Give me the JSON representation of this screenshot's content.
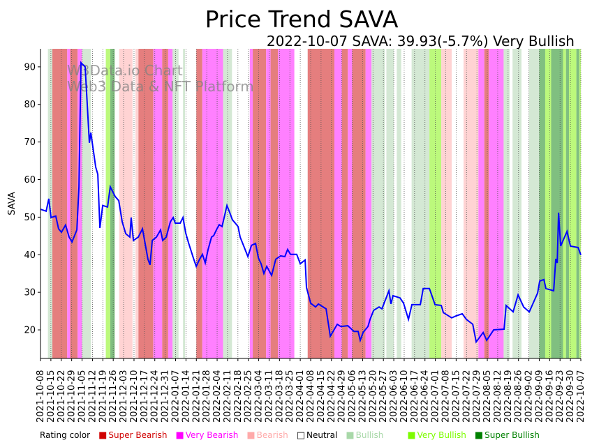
{
  "chart_data": {
    "type": "line",
    "title": "Price Trend SAVA",
    "subtitle": "2022-10-07 SAVA: 39.93(-5.7%) Very Bullish",
    "ylabel": "SAVA",
    "xlabel": "",
    "watermark": [
      "W3Data.io Chart",
      "Web3 Data & NFT Platform"
    ],
    "x_start": "2021-10-08",
    "x_range_days": [
      0,
      364
    ],
    "ylim": [
      12.4,
      94.8
    ],
    "yticks": [
      20,
      30,
      40,
      50,
      60,
      70,
      80,
      90
    ],
    "grid": "vertical dotted at x ticks",
    "xtick_days_step": 7,
    "xticks": [
      "2021-10-08",
      "2021-10-15",
      "2021-10-22",
      "2021-10-29",
      "2021-11-05",
      "2021-11-12",
      "2021-11-19",
      "2021-11-26",
      "2021-12-03",
      "2021-12-10",
      "2021-12-17",
      "2021-12-24",
      "2021-12-31",
      "2022-01-07",
      "2022-01-14",
      "2022-01-21",
      "2022-01-28",
      "2022-02-04",
      "2022-02-11",
      "2022-02-18",
      "2022-02-25",
      "2022-03-04",
      "2022-03-11",
      "2022-03-18",
      "2022-03-25",
      "2022-04-01",
      "2022-04-08",
      "2022-04-15",
      "2022-04-22",
      "2022-04-29",
      "2022-05-06",
      "2022-05-13",
      "2022-05-20",
      "2022-05-27",
      "2022-06-03",
      "2022-06-10",
      "2022-06-17",
      "2022-06-24",
      "2022-07-01",
      "2022-07-08",
      "2022-07-15",
      "2022-07-22",
      "2022-07-29",
      "2022-08-05",
      "2022-08-12",
      "2022-08-19",
      "2022-08-26",
      "2022-09-02",
      "2022-09-09",
      "2022-09-16",
      "2022-09-23",
      "2022-09-30",
      "2022-10-07"
    ],
    "series": [
      {
        "name": "SAVA",
        "color": "#0000ff",
        "points_day_price": [
          [
            0,
            52.1
          ],
          [
            3.8,
            51.6
          ],
          [
            5.6,
            54.9
          ],
          [
            7.1,
            49.9
          ],
          [
            10.3,
            50.3
          ],
          [
            12.2,
            46.9
          ],
          [
            14.1,
            46.0
          ],
          [
            16.9,
            47.9
          ],
          [
            19.3,
            44.7
          ],
          [
            21.2,
            43.4
          ],
          [
            24.5,
            46.6
          ],
          [
            25.9,
            58.1
          ],
          [
            27.3,
            91.1
          ],
          [
            30.1,
            90.0
          ],
          [
            32.9,
            69.8
          ],
          [
            33.9,
            72.5
          ],
          [
            37.2,
            63.3
          ],
          [
            38.6,
            61.4
          ],
          [
            40.0,
            47.1
          ],
          [
            41.9,
            53.1
          ],
          [
            45.2,
            52.7
          ],
          [
            47.0,
            58.1
          ],
          [
            50.3,
            55.5
          ],
          [
            52.7,
            54.4
          ],
          [
            55.0,
            48.8
          ],
          [
            57.4,
            45.6
          ],
          [
            60.2,
            44.7
          ],
          [
            61.1,
            49.9
          ],
          [
            62.6,
            43.8
          ],
          [
            65.9,
            44.7
          ],
          [
            68.7,
            46.9
          ],
          [
            72.4,
            38.8
          ],
          [
            73.8,
            37.3
          ],
          [
            75.3,
            43.8
          ],
          [
            78.1,
            44.7
          ],
          [
            80.9,
            46.6
          ],
          [
            82.3,
            43.8
          ],
          [
            84.7,
            44.7
          ],
          [
            87.5,
            48.8
          ],
          [
            89.4,
            49.9
          ],
          [
            90.8,
            48.4
          ],
          [
            94.1,
            48.4
          ],
          [
            96.0,
            49.9
          ],
          [
            97.8,
            45.8
          ],
          [
            99.7,
            43.2
          ],
          [
            103.0,
            39.1
          ],
          [
            104.9,
            36.9
          ],
          [
            107.2,
            38.8
          ],
          [
            109.1,
            40.1
          ],
          [
            111.0,
            37.8
          ],
          [
            112.9,
            41.4
          ],
          [
            115.2,
            44.7
          ],
          [
            116.7,
            45.1
          ],
          [
            118.5,
            46.6
          ],
          [
            120.4,
            48.0
          ],
          [
            122.3,
            47.5
          ],
          [
            125.6,
            53.1
          ],
          [
            127.5,
            51.2
          ],
          [
            129.3,
            49.3
          ],
          [
            131.2,
            48.4
          ],
          [
            133.1,
            47.5
          ],
          [
            134.5,
            44.7
          ],
          [
            137.3,
            41.9
          ],
          [
            139.7,
            39.5
          ],
          [
            142.1,
            42.5
          ],
          [
            144.9,
            43.0
          ],
          [
            146.8,
            39.1
          ],
          [
            148.6,
            37.6
          ],
          [
            150.5,
            35.0
          ],
          [
            152.4,
            36.9
          ],
          [
            155.7,
            34.5
          ],
          [
            158.5,
            38.8
          ],
          [
            161.8,
            39.7
          ],
          [
            164.6,
            39.5
          ],
          [
            166.5,
            41.4
          ],
          [
            168.4,
            40.1
          ],
          [
            172.6,
            40.1
          ],
          [
            175.0,
            37.6
          ],
          [
            178.3,
            38.6
          ],
          [
            179.2,
            31.3
          ],
          [
            182.0,
            27.1
          ],
          [
            185.3,
            26.1
          ],
          [
            187.2,
            26.9
          ],
          [
            192.4,
            25.6
          ],
          [
            195.2,
            18.3
          ],
          [
            199.9,
            21.5
          ],
          [
            202.3,
            20.9
          ],
          [
            207.0,
            21.1
          ],
          [
            211.2,
            19.6
          ],
          [
            214.0,
            19.6
          ],
          [
            215.4,
            17.2
          ],
          [
            217.3,
            19.3
          ],
          [
            220.6,
            20.9
          ],
          [
            222.0,
            22.8
          ],
          [
            224.4,
            25.2
          ],
          [
            228.1,
            26.1
          ],
          [
            230.0,
            25.6
          ],
          [
            234.7,
            30.4
          ],
          [
            236.1,
            26.9
          ],
          [
            237.5,
            29.1
          ],
          [
            242.2,
            28.5
          ],
          [
            244.6,
            27.1
          ],
          [
            247.9,
            22.8
          ],
          [
            250.2,
            26.7
          ],
          [
            255.9,
            26.7
          ],
          [
            257.8,
            31.0
          ],
          [
            262.0,
            31.0
          ],
          [
            265.8,
            26.7
          ],
          [
            270.0,
            26.5
          ],
          [
            271.4,
            24.6
          ],
          [
            277.0,
            23.2
          ],
          [
            279.9,
            23.7
          ],
          [
            284.1,
            24.3
          ],
          [
            286.9,
            22.8
          ],
          [
            291.2,
            21.5
          ],
          [
            293.5,
            16.8
          ],
          [
            298.2,
            19.3
          ],
          [
            300.6,
            17.2
          ],
          [
            305.3,
            20.0
          ],
          [
            312.3,
            20.2
          ],
          [
            313.7,
            26.5
          ],
          [
            318.4,
            24.8
          ],
          [
            321.7,
            29.3
          ],
          [
            325.5,
            26.1
          ],
          [
            329.3,
            24.8
          ],
          [
            334.9,
            29.8
          ],
          [
            336.3,
            33.0
          ],
          [
            339.1,
            33.4
          ],
          [
            340.5,
            31.0
          ],
          [
            345.7,
            30.4
          ],
          [
            347.1,
            38.9
          ],
          [
            348.1,
            37.8
          ],
          [
            349.0,
            51.2
          ],
          [
            350.4,
            42.3
          ],
          [
            354.7,
            46.2
          ],
          [
            357.0,
            42.3
          ],
          [
            362.2,
            41.9
          ],
          [
            364,
            39.93
          ]
        ]
      }
    ],
    "rating_bands_day_ranges": [
      [
        5,
        8,
        "Bullish"
      ],
      [
        8,
        18,
        "Super Bearish"
      ],
      [
        18,
        20,
        "Very Bearish"
      ],
      [
        20,
        25,
        "Super Bearish"
      ],
      [
        25,
        28,
        "Very Bearish"
      ],
      [
        28,
        34,
        "Bullish"
      ],
      [
        44,
        47,
        "Very Bullish"
      ],
      [
        47,
        50,
        "Super Bullish"
      ],
      [
        53,
        62,
        "Bearish"
      ],
      [
        64,
        66,
        "Bearish"
      ],
      [
        66,
        76,
        "Super Bearish"
      ],
      [
        76,
        82,
        "Very Bearish"
      ],
      [
        82,
        86,
        "Super Bearish"
      ],
      [
        86,
        89,
        "Very Bearish"
      ],
      [
        89,
        93,
        "Bullish"
      ],
      [
        96,
        97.4,
        "Bullish"
      ],
      [
        105,
        109,
        "Super Bearish"
      ],
      [
        109,
        123,
        "Very Bearish"
      ],
      [
        123,
        129,
        "Bullish"
      ],
      [
        141,
        143,
        "Very Bearish"
      ],
      [
        143,
        152,
        "Super Bearish"
      ],
      [
        152,
        155,
        "Very Bearish"
      ],
      [
        155,
        160,
        "Super Bearish"
      ],
      [
        160,
        171,
        "Very Bearish"
      ],
      [
        180,
        198,
        "Super Bearish"
      ],
      [
        198,
        203,
        "Very Bearish"
      ],
      [
        203,
        207,
        "Super Bearish"
      ],
      [
        207,
        210,
        "Very Bearish"
      ],
      [
        210,
        219,
        "Super Bearish"
      ],
      [
        219,
        223,
        "Very Bearish"
      ],
      [
        223,
        232,
        "Bullish"
      ],
      [
        233,
        238,
        "Bullish"
      ],
      [
        240,
        243,
        "Bullish"
      ],
      [
        250,
        262,
        "Bullish"
      ],
      [
        262,
        270,
        "Very Bullish"
      ],
      [
        270,
        277,
        "Bearish"
      ],
      [
        285,
        295,
        "Bearish"
      ],
      [
        295,
        299,
        "Very Bearish"
      ],
      [
        299,
        302,
        "Super Bearish"
      ],
      [
        302,
        312,
        "Very Bearish"
      ],
      [
        312,
        316,
        "Bullish"
      ],
      [
        318,
        324,
        "Bullish"
      ],
      [
        329,
        336,
        "Bullish"
      ],
      [
        336,
        340,
        "Super Bullish"
      ],
      [
        340,
        344,
        "Very Bullish"
      ],
      [
        344,
        352,
        "Super Bullish"
      ],
      [
        352,
        354,
        "Very Bullish"
      ],
      [
        354,
        356,
        "Super Bullish"
      ],
      [
        356,
        361,
        "Very Bullish"
      ],
      [
        361,
        363,
        "Super Bullish"
      ],
      [
        363,
        364,
        "Very Bullish"
      ]
    ],
    "band_colors": {
      "Super Bearish": "#e57e7e",
      "Very Bearish": "#ff80ff",
      "Bearish": "#ffd3d3",
      "Bullish": "#d4e8d4",
      "Very Bullish": "#bcf97c",
      "Super Bullish": "#80bf80"
    },
    "legend": {
      "title": "Rating color",
      "placement": "bottom",
      "items": [
        {
          "label": "Super Bearish",
          "color": "#d00000",
          "glyph": "■"
        },
        {
          "label": "Very Bearish",
          "color": "#ff00ff",
          "glyph": "■"
        },
        {
          "label": "Bearish",
          "color": "#ffaaaa",
          "glyph": "■"
        },
        {
          "label": "Neutral",
          "color": "#000000",
          "glyph": "□"
        },
        {
          "label": "Bullish",
          "color": "#a8d8a8",
          "glyph": "■"
        },
        {
          "label": "Very Bullish",
          "color": "#7cfc00",
          "glyph": "■"
        },
        {
          "label": "Super Bullish",
          "color": "#008000",
          "glyph": "■"
        }
      ]
    }
  }
}
